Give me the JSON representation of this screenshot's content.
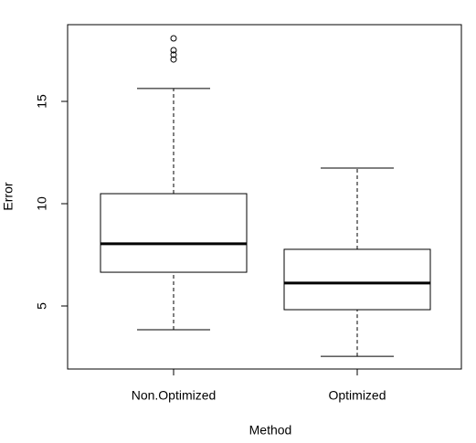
{
  "chart_data": {
    "type": "box",
    "x_label": "Method",
    "y_label": "Error",
    "categories": [
      "Non.Optimized",
      "Optimized"
    ],
    "boxes": [
      {
        "min": 3.84,
        "q1": 6.65,
        "median": 8.04,
        "q3": 10.49,
        "max": 15.63,
        "outliers": [
          18.08,
          17.5,
          17.28,
          17.05
        ]
      },
      {
        "min": 2.54,
        "q1": 4.82,
        "median": 6.12,
        "q3": 7.77,
        "max": 11.74,
        "outliers": []
      }
    ],
    "color": "#000000",
    "ylim": [
      1.92,
      18.75
    ],
    "yticks": [
      5,
      10,
      15
    ]
  }
}
